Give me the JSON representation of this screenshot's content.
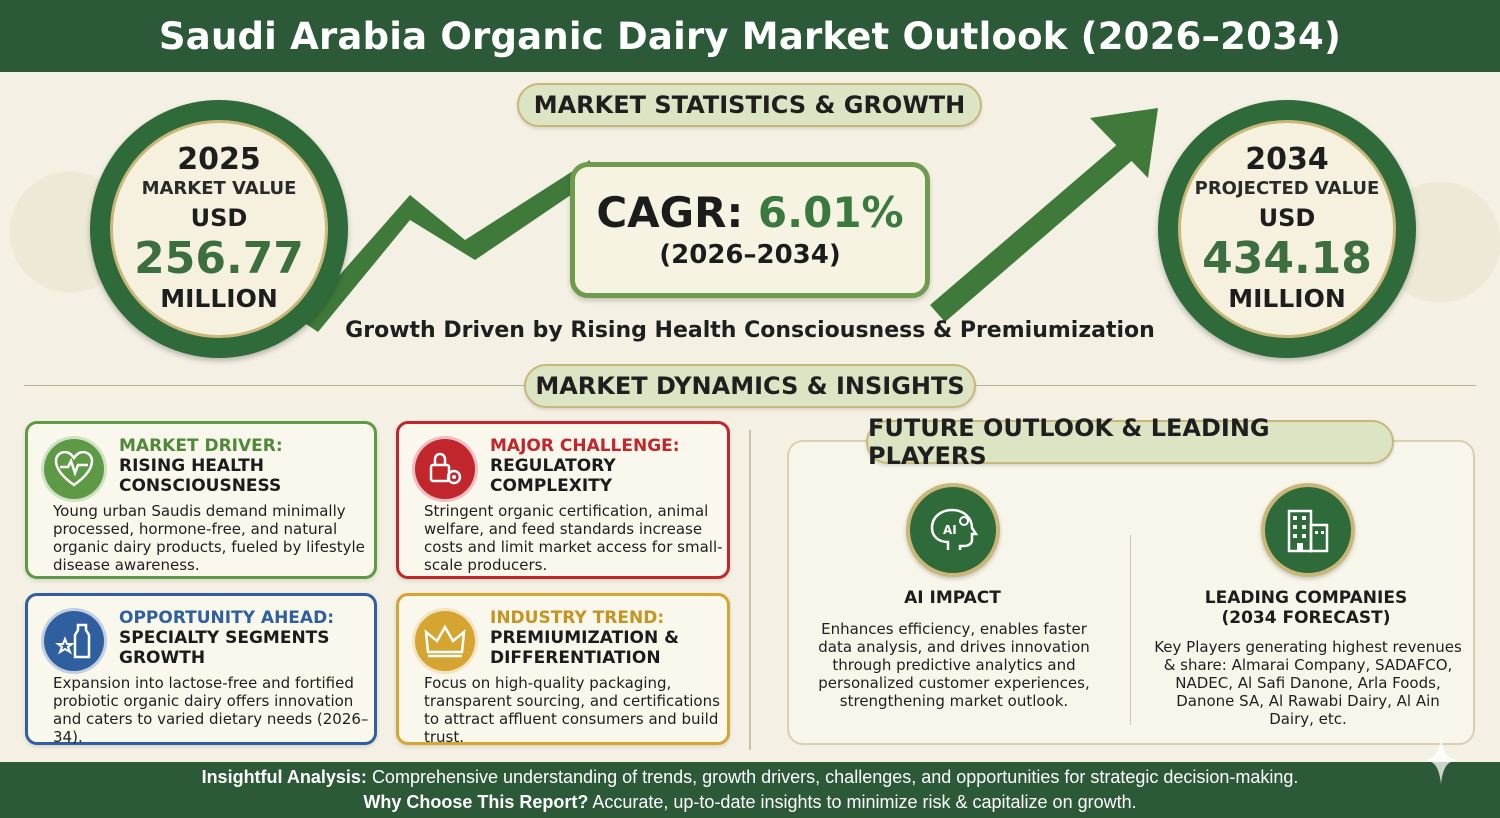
{
  "header": {
    "title": "Saudi Arabia Organic Dairy Market Outlook (2026–2034)"
  },
  "stats_section": {
    "label": "MARKET STATISTICS & GROWTH",
    "start": {
      "year": "2025",
      "label": "MARKET VALUE",
      "currency": "USD",
      "value": "256.77",
      "unit": "MILLION"
    },
    "end": {
      "year": "2034",
      "label": "PROJECTED VALUE",
      "currency": "USD",
      "value": "434.18",
      "unit": "MILLION"
    },
    "cagr_prefix": "CAGR:",
    "cagr_value": "6.01%",
    "cagr_period": "(2026–2034)",
    "caption": "Growth Driven by Rising Health Consciousness & Premiumization"
  },
  "dynamics_section": {
    "label": "MARKET DYNAMICS & INSIGHTS",
    "cards": [
      {
        "kicker": "MARKET DRIVER:",
        "title": "RISING HEALTH CONSCIOUSNESS",
        "desc": "Young urban Saudis demand minimally processed, hormone-free, and natural organic dairy products, fueled by lifestyle disease awareness.",
        "icon": "heart-pulse-icon",
        "color": "#5e9a45"
      },
      {
        "kicker": "MAJOR CHALLENGE:",
        "title": "REGULATORY COMPLEXITY",
        "desc": "Stringent organic certification, animal welfare, and feed standards increase costs and limit market access for small-scale producers.",
        "icon": "lock-gear-icon",
        "color": "#c0262c"
      },
      {
        "kicker": "OPPORTUNITY AHEAD:",
        "title": "SPECIALTY SEGMENTS GROWTH",
        "desc": "Expansion into lactose-free and fortified probiotic organic dairy offers innovation and caters to varied dietary needs (2026–34).",
        "icon": "milk-bottle-icon",
        "color": "#2f5f9e"
      },
      {
        "kicker": "INDUSTRY TREND:",
        "title": "PREMIUMIZATION & DIFFERENTIATION",
        "desc": "Focus on high-quality packaging, transparent sourcing, and certifications to attract affluent consumers and build trust.",
        "icon": "crown-icon",
        "color": "#d6a431"
      }
    ]
  },
  "future_section": {
    "label": "FUTURE OUTLOOK & LEADING PLAYERS",
    "ai": {
      "title": "AI IMPACT",
      "icon": "ai-brain-icon",
      "desc": "Enhances efficiency, enables faster data analysis, and drives innovation through predictive analytics and personalized customer experiences, strengthening market outlook."
    },
    "companies": {
      "title": "LEADING COMPANIES (2034 FORECAST)",
      "icon": "buildings-icon",
      "desc": "Key Players generating highest revenues & share: Almarai Company, SADAFCO, NADEC, Al Safi Danone, Arla Foods, Danone SA, Al Rawabi Dairy, Al Ain Dairy, etc."
    }
  },
  "footer": {
    "line1_label": "Insightful Analysis:",
    "line1_text": "Comprehensive understanding of trends, growth drivers, challenges, and opportunities for strategic decision-making.",
    "line2_label": "Why Choose This Report?",
    "line2_text": "Accurate, up-to-date insights to minimize risk & capitalize on growth."
  },
  "colors": {
    "brand_green": "#2c5a38",
    "accent_gold": "#c9b77a",
    "arrow_green": "#4e8a43"
  }
}
